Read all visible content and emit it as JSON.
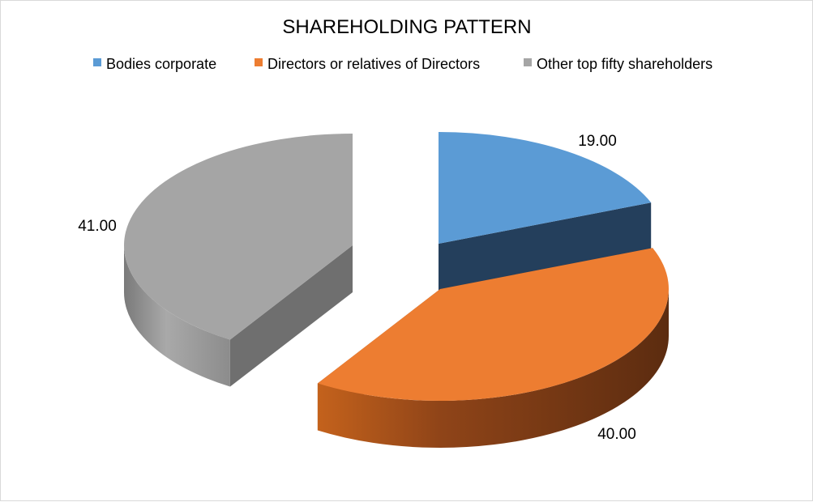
{
  "chart_data": {
    "type": "pie",
    "title": "SHAREHOLDING PATTERN",
    "legend_position": "top",
    "three_d": true,
    "exploded": true,
    "series": [
      {
        "categories": [
          "Bodies corporate",
          "Directors or relatives of Directors",
          "Other top fifty shareholders"
        ],
        "values": [
          19.0,
          40.0,
          41.0
        ],
        "value_labels": [
          "19.00",
          "40.00",
          "41.00"
        ]
      }
    ],
    "colors": [
      "#5b9bd5",
      "#ed7d31",
      "#a5a5a5"
    ]
  }
}
